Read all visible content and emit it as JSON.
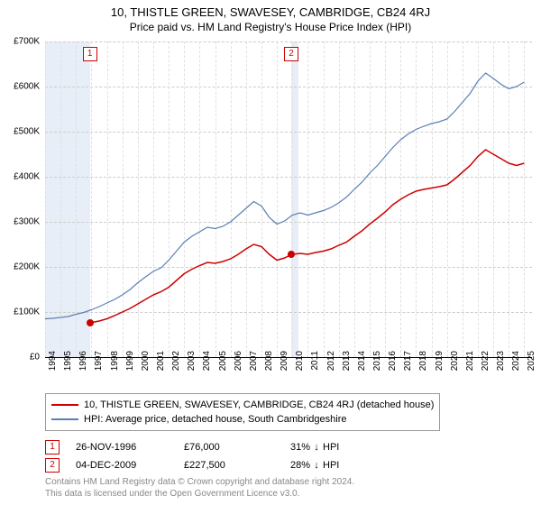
{
  "title_line1": "10, THISTLE GREEN, SWAVESEY, CAMBRIDGE, CB24 4RJ",
  "title_line2": "Price paid vs. HM Land Registry's House Price Index (HPI)",
  "chart": {
    "type": "line",
    "x_years": [
      1994,
      1995,
      1996,
      1997,
      1998,
      1999,
      2000,
      2001,
      2002,
      2003,
      2004,
      2005,
      2006,
      2007,
      2008,
      2009,
      2010,
      2011,
      2012,
      2013,
      2014,
      2015,
      2016,
      2017,
      2018,
      2019,
      2020,
      2021,
      2022,
      2023,
      2024,
      2025
    ],
    "xlim": [
      1994,
      2025.5
    ],
    "ylim": [
      0,
      700000
    ],
    "ytick_step": 100000,
    "ytick_labels": [
      "£0",
      "£100K",
      "£200K",
      "£300K",
      "£400K",
      "£500K",
      "£600K",
      "£700K"
    ],
    "y_currency_prefix": "£",
    "grid_color": "#cccccc",
    "background": "#ffffff",
    "shade_color": "#e8eef7",
    "shade_ranges": [
      [
        1994,
        1996.9
      ],
      [
        2009.93,
        2010.4
      ]
    ],
    "series": [
      {
        "name": "price_paid",
        "color": "#cc0000",
        "width": 1.5,
        "data": [
          [
            1996.9,
            76000
          ],
          [
            1997.5,
            80000
          ],
          [
            1998.0,
            85000
          ],
          [
            1998.5,
            92000
          ],
          [
            1999.0,
            100000
          ],
          [
            1999.5,
            108000
          ],
          [
            2000.0,
            118000
          ],
          [
            2000.5,
            128000
          ],
          [
            2001.0,
            138000
          ],
          [
            2001.5,
            145000
          ],
          [
            2002.0,
            155000
          ],
          [
            2002.5,
            170000
          ],
          [
            2003.0,
            185000
          ],
          [
            2003.5,
            195000
          ],
          [
            2004.0,
            203000
          ],
          [
            2004.5,
            210000
          ],
          [
            2005.0,
            208000
          ],
          [
            2005.5,
            212000
          ],
          [
            2006.0,
            218000
          ],
          [
            2006.5,
            228000
          ],
          [
            2007.0,
            240000
          ],
          [
            2007.5,
            250000
          ],
          [
            2008.0,
            245000
          ],
          [
            2008.5,
            228000
          ],
          [
            2009.0,
            215000
          ],
          [
            2009.5,
            220000
          ],
          [
            2009.93,
            227500
          ],
          [
            2010.5,
            230000
          ],
          [
            2011.0,
            228000
          ],
          [
            2011.5,
            232000
          ],
          [
            2012.0,
            235000
          ],
          [
            2012.5,
            240000
          ],
          [
            2013.0,
            248000
          ],
          [
            2013.5,
            255000
          ],
          [
            2014.0,
            268000
          ],
          [
            2014.5,
            280000
          ],
          [
            2015.0,
            295000
          ],
          [
            2015.5,
            308000
          ],
          [
            2016.0,
            322000
          ],
          [
            2016.5,
            338000
          ],
          [
            2017.0,
            350000
          ],
          [
            2017.5,
            360000
          ],
          [
            2018.0,
            368000
          ],
          [
            2018.5,
            372000
          ],
          [
            2019.0,
            375000
          ],
          [
            2019.5,
            378000
          ],
          [
            2020.0,
            382000
          ],
          [
            2020.5,
            395000
          ],
          [
            2021.0,
            410000
          ],
          [
            2021.5,
            425000
          ],
          [
            2022.0,
            445000
          ],
          [
            2022.5,
            460000
          ],
          [
            2023.0,
            450000
          ],
          [
            2023.5,
            440000
          ],
          [
            2024.0,
            430000
          ],
          [
            2024.5,
            425000
          ],
          [
            2025.0,
            430000
          ]
        ]
      },
      {
        "name": "hpi",
        "color": "#5b7fb4",
        "width": 1.2,
        "data": [
          [
            1994.0,
            85000
          ],
          [
            1994.5,
            86000
          ],
          [
            1995.0,
            88000
          ],
          [
            1995.5,
            90000
          ],
          [
            1996.0,
            95000
          ],
          [
            1996.5,
            99000
          ],
          [
            1997.0,
            105000
          ],
          [
            1997.5,
            112000
          ],
          [
            1998.0,
            120000
          ],
          [
            1998.5,
            128000
          ],
          [
            1999.0,
            138000
          ],
          [
            1999.5,
            150000
          ],
          [
            2000.0,
            165000
          ],
          [
            2000.5,
            178000
          ],
          [
            2001.0,
            190000
          ],
          [
            2001.5,
            198000
          ],
          [
            2002.0,
            215000
          ],
          [
            2002.5,
            235000
          ],
          [
            2003.0,
            255000
          ],
          [
            2003.5,
            268000
          ],
          [
            2004.0,
            278000
          ],
          [
            2004.5,
            288000
          ],
          [
            2005.0,
            285000
          ],
          [
            2005.5,
            290000
          ],
          [
            2006.0,
            300000
          ],
          [
            2006.5,
            315000
          ],
          [
            2007.0,
            330000
          ],
          [
            2007.5,
            345000
          ],
          [
            2008.0,
            335000
          ],
          [
            2008.5,
            310000
          ],
          [
            2009.0,
            295000
          ],
          [
            2009.5,
            302000
          ],
          [
            2010.0,
            315000
          ],
          [
            2010.5,
            320000
          ],
          [
            2011.0,
            315000
          ],
          [
            2011.5,
            320000
          ],
          [
            2012.0,
            325000
          ],
          [
            2012.5,
            332000
          ],
          [
            2013.0,
            342000
          ],
          [
            2013.5,
            355000
          ],
          [
            2014.0,
            372000
          ],
          [
            2014.5,
            388000
          ],
          [
            2015.0,
            408000
          ],
          [
            2015.5,
            425000
          ],
          [
            2016.0,
            445000
          ],
          [
            2016.5,
            465000
          ],
          [
            2017.0,
            482000
          ],
          [
            2017.5,
            495000
          ],
          [
            2018.0,
            505000
          ],
          [
            2018.5,
            512000
          ],
          [
            2019.0,
            518000
          ],
          [
            2019.5,
            522000
          ],
          [
            2020.0,
            528000
          ],
          [
            2020.5,
            545000
          ],
          [
            2021.0,
            565000
          ],
          [
            2021.5,
            585000
          ],
          [
            2022.0,
            612000
          ],
          [
            2022.5,
            630000
          ],
          [
            2023.0,
            618000
          ],
          [
            2023.5,
            605000
          ],
          [
            2024.0,
            595000
          ],
          [
            2024.5,
            600000
          ],
          [
            2025.0,
            610000
          ]
        ]
      }
    ],
    "markers": [
      {
        "label": "1",
        "year": 1996.9,
        "value": 76000
      },
      {
        "label": "2",
        "year": 2009.93,
        "value": 227500
      }
    ]
  },
  "legend": {
    "series1": {
      "color": "#cc0000",
      "label": "10, THISTLE GREEN, SWAVESEY, CAMBRIDGE, CB24 4RJ (detached house)"
    },
    "series2": {
      "color": "#5b7fb4",
      "label": "HPI: Average price, detached house, South Cambridgeshire"
    }
  },
  "transactions": [
    {
      "num": "1",
      "date": "26-NOV-1996",
      "price": "£76,000",
      "pct": "31%",
      "arrow": "↓",
      "vs": "HPI"
    },
    {
      "num": "2",
      "date": "04-DEC-2009",
      "price": "£227,500",
      "pct": "28%",
      "arrow": "↓",
      "vs": "HPI"
    }
  ],
  "credits_line1": "Contains HM Land Registry data © Crown copyright and database right 2024.",
  "credits_line2": "This data is licensed under the Open Government Licence v3.0."
}
